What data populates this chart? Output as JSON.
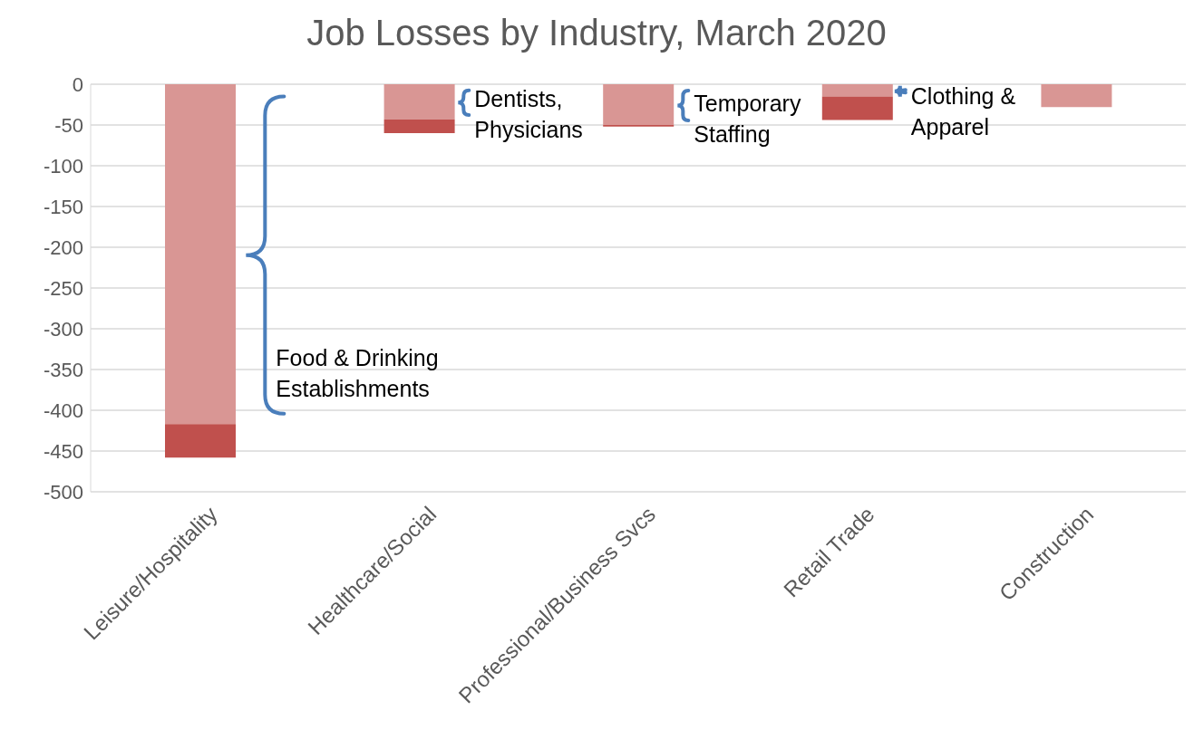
{
  "chart_data": {
    "type": "bar",
    "title": "Job Losses by Industry, March 2020",
    "categories": [
      "Leisure/Hospitality",
      "Healthcare/Social",
      "Professional/Business Svcs",
      "Retail Trade",
      "Construction"
    ],
    "stacked": true,
    "series": [
      {
        "color": "#d99694",
        "values": [
          -417,
          -43,
          -50,
          -15,
          -28
        ]
      },
      {
        "color": "#c0504d",
        "values": [
          -41,
          -17,
          -2,
          -29,
          null
        ]
      }
    ],
    "ylim": [
      -500,
      0
    ],
    "yticks": [
      -500,
      -450,
      -400,
      -350,
      -300,
      -250,
      -200,
      -150,
      -100,
      -50,
      0
    ],
    "grid": "y",
    "annotations": [
      "Food & Drinking Establishments",
      "Dentists, Physicians",
      "Temporary Staffing",
      "Clothing & Apparel"
    ]
  }
}
